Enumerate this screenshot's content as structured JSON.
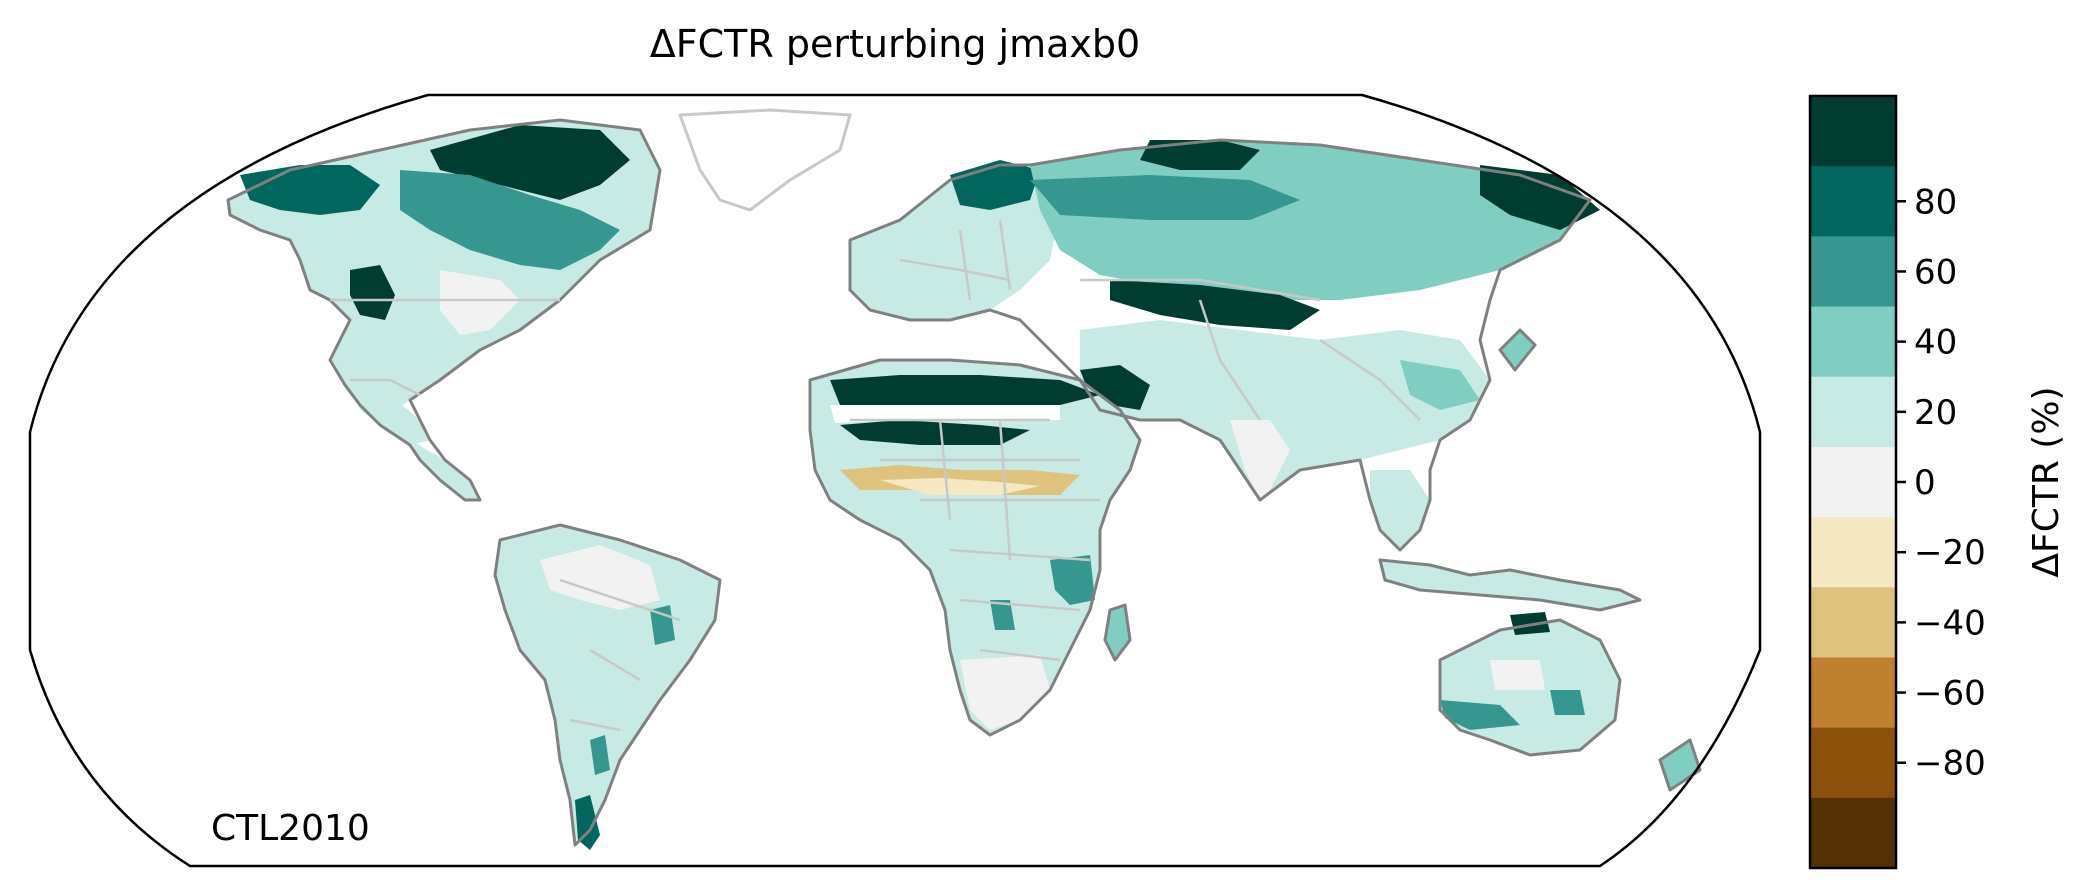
{
  "title": "ΔFCTR perturbing jmaxb0",
  "panel_label": "CTL2010",
  "colorbar": {
    "label": "ΔFCTR (%)",
    "range": [
      -90,
      90
    ],
    "bin_size": 20,
    "tick_values": [
      80,
      60,
      40,
      20,
      0,
      -20,
      -40,
      -60,
      -80
    ],
    "tick_labels": [
      "80",
      "60",
      "40",
      "20",
      "0",
      "−20",
      "−40",
      "−60",
      "−80"
    ],
    "bins": [
      {
        "from": 70,
        "to": 90,
        "color": "#003c30"
      },
      {
        "from": 50,
        "to": 70,
        "color": "#01665e"
      },
      {
        "from": 30,
        "to": 50,
        "color": "#35978f"
      },
      {
        "from": 10,
        "to": 30,
        "color": "#80cdc1"
      },
      {
        "from": 10,
        "to": 10,
        "color": "#c7eae5",
        "note": ""
      },
      {
        "from": -10,
        "to": 10,
        "color": "#f5f5f5"
      },
      {
        "from": -30,
        "to": -10,
        "color": "#f6e8c3"
      },
      {
        "from": -50,
        "to": -30,
        "color": "#dfc27d"
      },
      {
        "from": -70,
        "to": -50,
        "color": "#bf812d"
      },
      {
        "from": -90,
        "to": -70,
        "color": "#8c510a"
      }
    ]
  },
  "palette": {
    "c80": "#003c30",
    "c60": "#01665e",
    "c40": "#35978f",
    "c20": "#80cdc1",
    "c10": "#c7eae5",
    "c0": "#f2f2f2",
    "cm20": "#f6e8c3",
    "cm40": "#dfc27d",
    "cm60": "#bf812d",
    "cm80": "#8c510a",
    "cm100": "#543005",
    "coast": "#808080",
    "borders": "#c8c8c8"
  }
}
